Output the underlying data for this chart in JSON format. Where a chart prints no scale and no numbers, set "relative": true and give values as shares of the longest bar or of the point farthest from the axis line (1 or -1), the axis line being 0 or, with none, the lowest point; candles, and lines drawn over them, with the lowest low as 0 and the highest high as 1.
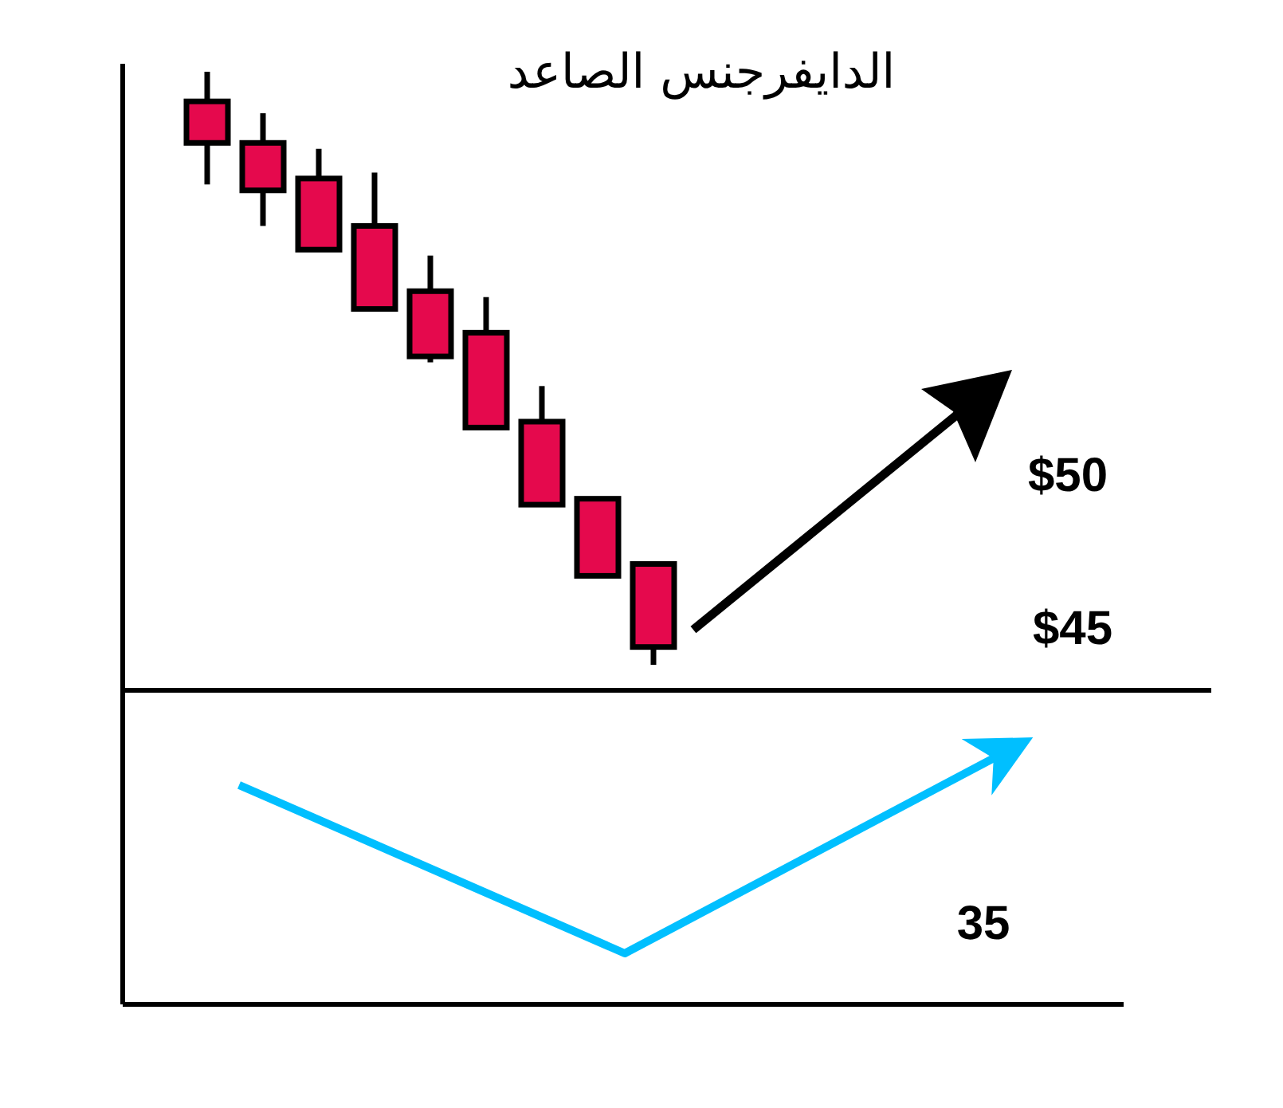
{
  "chart_data": [
    {
      "type": "candlestick",
      "title": "الدايفرجنس الصاعد",
      "relative": true,
      "color": "#e5094d",
      "categories": [
        null,
        null,
        null,
        null,
        null,
        null,
        null,
        null,
        null
      ],
      "ohlc": [
        [
          0.95,
          1.0,
          0.81,
          0.88
        ],
        [
          0.88,
          0.93,
          0.74,
          0.8
        ],
        [
          0.82,
          0.87,
          0.7,
          0.7
        ],
        [
          0.74,
          0.83,
          0.6,
          0.6
        ],
        [
          0.63,
          0.69,
          0.51,
          0.52
        ],
        [
          0.56,
          0.62,
          0.4,
          0.4
        ],
        [
          0.41,
          0.47,
          0.27,
          0.27
        ],
        [
          0.28,
          0.28,
          0.15,
          0.15
        ],
        [
          0.17,
          0.17,
          0.0,
          0.03
        ]
      ],
      "annotations": [
        "$50",
        "$45"
      ]
    },
    {
      "type": "line",
      "relative": true,
      "color": "#00bfff",
      "categories": [
        null,
        null,
        null
      ],
      "values": [
        0.86,
        0.2,
        1.0
      ],
      "annotations": [
        "35"
      ]
    }
  ]
}
